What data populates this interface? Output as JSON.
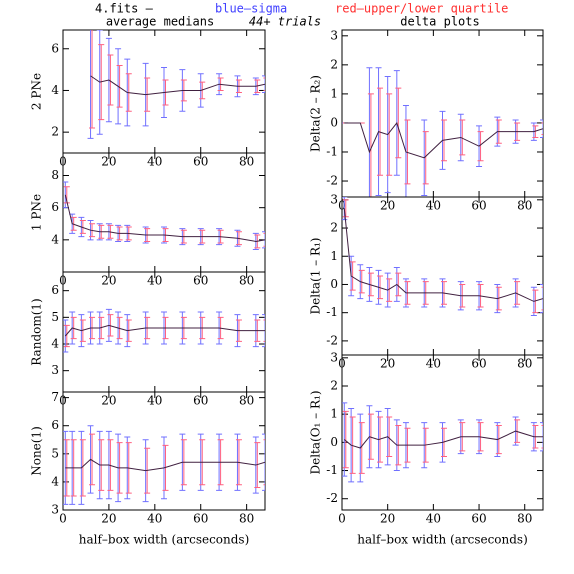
{
  "header": {
    "file": "4.fits  –",
    "sigma": "blue–sigma",
    "quartile": "red–upper/lower quartile",
    "left_title": "average medians",
    "trials": "44+ trials",
    "right_title": "delta plots"
  },
  "chart_data": [
    {
      "type": "line",
      "ylabel": "2 PNe",
      "xlim": [
        0,
        88
      ],
      "xticks": [
        0,
        20,
        40,
        60,
        80
      ],
      "ylim": [
        1,
        6.9
      ],
      "yticks": [
        2,
        4,
        6
      ],
      "x": [
        1,
        4,
        8,
        12,
        16,
        20,
        24,
        28,
        36,
        44,
        52,
        60,
        68,
        76,
        84,
        88
      ],
      "color": "#402040",
      "sigma_color": "#7070ff",
      "quartile_color": "#ff6080",
      "values": [
        null,
        null,
        null,
        4.7,
        4.4,
        4.5,
        4.2,
        3.9,
        3.8,
        3.9,
        4.0,
        4.0,
        4.3,
        4.2,
        4.2,
        4.3
      ],
      "sigma": [
        null,
        null,
        null,
        3.0,
        2.5,
        2.0,
        1.8,
        1.6,
        1.5,
        1.2,
        1.0,
        0.8,
        0.5,
        0.5,
        0.4,
        0.4
      ],
      "quartile": [
        null,
        null,
        null,
        2.5,
        1.8,
        1.2,
        1.0,
        0.9,
        0.8,
        0.6,
        0.5,
        0.4,
        0.3,
        0.3,
        0.3,
        0.3
      ]
    },
    {
      "type": "line",
      "ylabel": "1 PNe",
      "xlim": [
        0,
        88
      ],
      "xticks": [
        0,
        20,
        40,
        60,
        80
      ],
      "ylim": [
        2,
        9.4
      ],
      "yticks": [
        4,
        6,
        8
      ],
      "x": [
        1,
        4,
        8,
        12,
        16,
        20,
        24,
        28,
        36,
        44,
        52,
        60,
        68,
        76,
        84,
        88
      ],
      "color": "#402040",
      "sigma_color": "#7070ff",
      "quartile_color": "#ff6080",
      "values": [
        6.8,
        5.0,
        4.8,
        4.6,
        4.5,
        4.5,
        4.4,
        4.4,
        4.3,
        4.3,
        4.2,
        4.2,
        4.2,
        4.1,
        3.9,
        4.0
      ],
      "sigma": [
        0.8,
        0.6,
        0.6,
        0.6,
        0.5,
        0.5,
        0.5,
        0.5,
        0.5,
        0.5,
        0.5,
        0.5,
        0.5,
        0.5,
        0.5,
        0.5
      ],
      "quartile": [
        0.5,
        0.4,
        0.4,
        0.4,
        0.4,
        0.4,
        0.4,
        0.4,
        0.4,
        0.4,
        0.4,
        0.4,
        0.4,
        0.4,
        0.4,
        0.4
      ]
    },
    {
      "type": "line",
      "ylabel": "Random(1)",
      "xlim": [
        0,
        88
      ],
      "xticks": [
        0,
        20,
        40,
        60,
        80
      ],
      "ylim": [
        2.2,
        6.7
      ],
      "yticks": [
        3,
        4,
        5,
        6
      ],
      "x": [
        1,
        4,
        8,
        12,
        16,
        20,
        24,
        28,
        36,
        44,
        52,
        60,
        68,
        76,
        84,
        88
      ],
      "color": "#402040",
      "sigma_color": "#7070ff",
      "quartile_color": "#ff6080",
      "values": [
        4.3,
        4.6,
        4.5,
        4.6,
        4.6,
        4.7,
        4.6,
        4.5,
        4.6,
        4.6,
        4.6,
        4.6,
        4.6,
        4.5,
        4.5,
        4.5
      ],
      "sigma": [
        0.6,
        0.6,
        0.6,
        0.6,
        0.6,
        0.6,
        0.6,
        0.6,
        0.6,
        0.6,
        0.6,
        0.6,
        0.6,
        0.6,
        0.6,
        0.6
      ],
      "quartile": [
        0.4,
        0.4,
        0.4,
        0.4,
        0.4,
        0.4,
        0.4,
        0.4,
        0.4,
        0.4,
        0.4,
        0.4,
        0.4,
        0.4,
        0.4,
        0.4
      ]
    },
    {
      "type": "line",
      "ylabel": "None(1)",
      "xlabel": "half–box width (arcseconds)",
      "xlim": [
        0,
        88
      ],
      "xticks": [
        0,
        20,
        40,
        60,
        80
      ],
      "ylim": [
        3,
        7.2
      ],
      "yticks": [
        3,
        4,
        5,
        6,
        7
      ],
      "x": [
        1,
        4,
        8,
        12,
        16,
        20,
        24,
        28,
        36,
        44,
        52,
        60,
        68,
        76,
        84,
        88
      ],
      "color": "#402040",
      "sigma_color": "#7070ff",
      "quartile_color": "#ff6080",
      "values": [
        4.5,
        4.5,
        4.5,
        4.8,
        4.6,
        4.6,
        4.5,
        4.5,
        4.4,
        4.5,
        4.7,
        4.7,
        4.7,
        4.7,
        4.6,
        4.7
      ],
      "sigma": [
        1.3,
        1.3,
        1.3,
        1.2,
        1.2,
        1.2,
        1.2,
        1.1,
        1.1,
        1.1,
        1.0,
        1.0,
        1.0,
        1.0,
        1.0,
        1.0
      ],
      "quartile": [
        1.0,
        1.0,
        1.0,
        0.9,
        0.9,
        0.9,
        0.9,
        0.9,
        0.8,
        0.8,
        0.8,
        0.8,
        0.8,
        0.8,
        0.8,
        0.8
      ]
    },
    {
      "type": "line",
      "ylabel": "Delta(2 – R₂)",
      "xlim": [
        0,
        88
      ],
      "xticks": [
        0,
        20,
        40,
        60,
        80
      ],
      "ylim": [
        -2.55,
        3.2
      ],
      "yticks": [
        -2,
        -1,
        0,
        1,
        2,
        3
      ],
      "x": [
        1,
        4,
        8,
        12,
        16,
        20,
        24,
        28,
        36,
        44,
        52,
        60,
        68,
        76,
        84,
        88
      ],
      "color": "#402040",
      "sigma_color": "#7070ff",
      "quartile_color": "#ff6080",
      "values": [
        0,
        0,
        0,
        -1.0,
        -0.3,
        -0.4,
        0,
        -1.0,
        -1.2,
        -0.6,
        -0.5,
        -0.8,
        -0.3,
        -0.3,
        -0.3,
        -0.2
      ],
      "sigma": [
        0,
        0,
        0,
        2.9,
        2.2,
        2.0,
        1.8,
        1.6,
        1.3,
        1.0,
        0.8,
        0.7,
        0.5,
        0.4,
        0.3,
        0.3
      ],
      "quartile": [
        0,
        0,
        0,
        2.0,
        1.5,
        1.4,
        1.2,
        1.1,
        0.9,
        0.7,
        0.6,
        0.5,
        0.4,
        0.3,
        0.2,
        0.2
      ]
    },
    {
      "type": "line",
      "ylabel": "Delta(1 – R₁)",
      "xlim": [
        0,
        88
      ],
      "xticks": [
        0,
        20,
        40,
        60,
        80
      ],
      "ylim": [
        -2.5,
        3.1
      ],
      "yticks": [
        -2,
        -1,
        0,
        1,
        2,
        3
      ],
      "x": [
        1,
        4,
        8,
        12,
        16,
        20,
        24,
        28,
        36,
        44,
        52,
        60,
        68,
        76,
        84,
        88
      ],
      "color": "#402040",
      "sigma_color": "#7070ff",
      "quartile_color": "#ff6080",
      "values": [
        2.7,
        0.3,
        0.1,
        0,
        -0.1,
        -0.2,
        0,
        -0.3,
        -0.3,
        -0.3,
        -0.4,
        -0.4,
        -0.5,
        -0.3,
        -0.6,
        -0.5
      ],
      "sigma": [
        0.4,
        0.7,
        0.6,
        0.6,
        0.6,
        0.6,
        0.6,
        0.5,
        0.5,
        0.5,
        0.5,
        0.5,
        0.5,
        0.5,
        0.5,
        0.5
      ],
      "quartile": [
        0.3,
        0.5,
        0.4,
        0.4,
        0.4,
        0.4,
        0.4,
        0.4,
        0.4,
        0.4,
        0.4,
        0.4,
        0.4,
        0.4,
        0.4,
        0.4
      ]
    },
    {
      "type": "line",
      "ylabel": "Delta(O₁ – R₁)",
      "xlabel": "half–box width (arcseconds)",
      "xlim": [
        0,
        88
      ],
      "xticks": [
        0,
        20,
        40,
        60,
        80
      ],
      "ylim": [
        -2.4,
        3.1
      ],
      "yticks": [
        -2,
        -1,
        0,
        1,
        2,
        3
      ],
      "x": [
        1,
        4,
        8,
        12,
        16,
        20,
        24,
        28,
        36,
        44,
        52,
        60,
        68,
        76,
        84,
        88
      ],
      "color": "#402040",
      "sigma_color": "#7070ff",
      "quartile_color": "#ff6080",
      "values": [
        0.1,
        -0.1,
        -0.2,
        0.2,
        0.1,
        0.2,
        -0.1,
        -0.1,
        -0.1,
        0,
        0.2,
        0.2,
        0.1,
        0.4,
        0.2,
        0.2
      ],
      "sigma": [
        1.3,
        1.3,
        1.2,
        1.1,
        1.0,
        1.0,
        0.9,
        0.8,
        0.8,
        0.7,
        0.6,
        0.6,
        0.6,
        0.5,
        0.5,
        0.5
      ],
      "quartile": [
        1.0,
        1.0,
        0.9,
        0.8,
        0.8,
        0.7,
        0.7,
        0.6,
        0.6,
        0.5,
        0.5,
        0.5,
        0.5,
        0.4,
        0.4,
        0.4
      ]
    }
  ]
}
